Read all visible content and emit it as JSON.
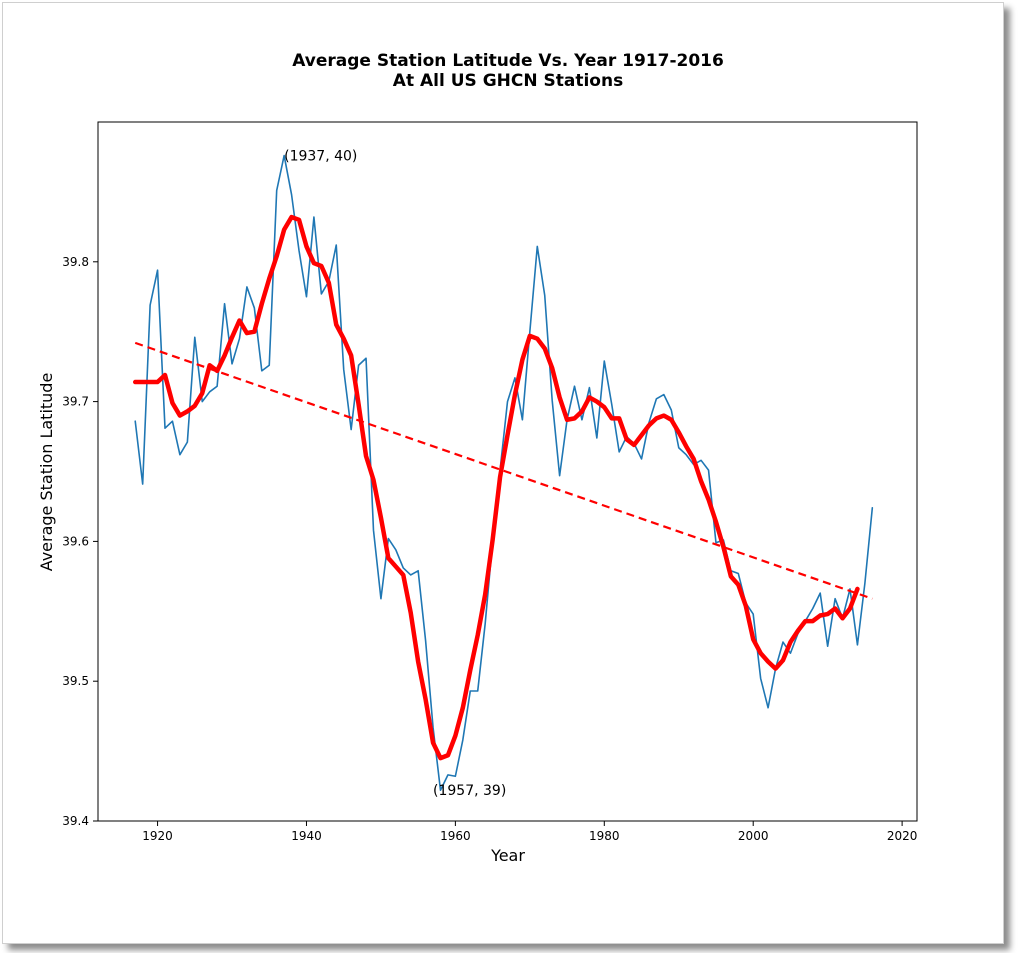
{
  "chart_data": {
    "type": "line",
    "title": "Average Station Latitude Vs. Year 1917-2016",
    "subtitle": "At All US GHCN Stations",
    "xlabel": "Year",
    "ylabel": "Average Station Latitude",
    "xlim": [
      1912,
      2022
    ],
    "ylim": [
      39.4,
      39.9
    ],
    "xticks": [
      1920,
      1940,
      1960,
      1980,
      2000,
      2020
    ],
    "yticks": [
      39.4,
      39.5,
      39.6,
      39.7,
      39.8
    ],
    "xtick_labels": [
      "1920",
      "1940",
      "1960",
      "1980",
      "2000",
      "2020"
    ],
    "ytick_labels": [
      "39.4",
      "39.5",
      "39.6",
      "39.7",
      "39.8"
    ],
    "grid": false,
    "colors": {
      "raw": "#1f77b4",
      "smooth": "#ff0000",
      "trend": "#ff0000"
    },
    "series": [
      {
        "style": "thin-blue",
        "x": [
          1917,
          1918,
          1919,
          1920,
          1921,
          1922,
          1923,
          1924,
          1925,
          1926,
          1927,
          1928,
          1929,
          1930,
          1931,
          1932,
          1933,
          1934,
          1935,
          1936,
          1937,
          1938,
          1939,
          1940,
          1941,
          1942,
          1943,
          1944,
          1945,
          1946,
          1947,
          1948,
          1949,
          1950,
          1951,
          1952,
          1953,
          1954,
          1955,
          1956,
          1957,
          1958,
          1959,
          1960,
          1961,
          1962,
          1963,
          1964,
          1965,
          1966,
          1967,
          1968,
          1969,
          1970,
          1971,
          1972,
          1973,
          1974,
          1975,
          1976,
          1977,
          1978,
          1979,
          1980,
          1981,
          1982,
          1983,
          1984,
          1985,
          1986,
          1987,
          1988,
          1989,
          1990,
          1991,
          1992,
          1993,
          1994,
          1995,
          1996,
          1997,
          1998,
          1999,
          2000,
          2001,
          2002,
          2003,
          2004,
          2005,
          2006,
          2007,
          2008,
          2009,
          2010,
          2011,
          2012,
          2013,
          2014,
          2015,
          2016
        ],
        "y": [
          39.686,
          39.641,
          39.769,
          39.794,
          39.681,
          39.686,
          39.662,
          39.671,
          39.746,
          39.7,
          39.707,
          39.711,
          39.77,
          39.727,
          39.745,
          39.782,
          39.767,
          39.722,
          39.726,
          39.851,
          39.876,
          39.848,
          39.808,
          39.775,
          39.832,
          39.777,
          39.786,
          39.812,
          39.723,
          39.68,
          39.726,
          39.731,
          39.608,
          39.559,
          39.602,
          39.594,
          39.581,
          39.576,
          39.579,
          39.529,
          39.467,
          39.422,
          39.433,
          39.432,
          39.458,
          39.493,
          39.493,
          39.541,
          39.6,
          39.651,
          39.7,
          39.717,
          39.687,
          39.75,
          39.811,
          39.776,
          39.701,
          39.647,
          39.687,
          39.711,
          39.687,
          39.71,
          39.674,
          39.729,
          39.698,
          39.664,
          39.675,
          39.67,
          39.659,
          39.685,
          39.702,
          39.705,
          39.694,
          39.667,
          39.662,
          39.655,
          39.658,
          39.651,
          39.599,
          39.601,
          39.579,
          39.577,
          39.556,
          39.548,
          39.502,
          39.481,
          39.509,
          39.528,
          39.52,
          39.534,
          39.543,
          39.552,
          39.563,
          39.525,
          39.559,
          39.545,
          39.566,
          39.526,
          39.57,
          39.624
        ]
      },
      {
        "style": "thick-red",
        "x": [
          1917,
          1918,
          1919,
          1920,
          1921,
          1922,
          1923,
          1924,
          1925,
          1926,
          1927,
          1928,
          1929,
          1930,
          1931,
          1932,
          1933,
          1934,
          1935,
          1936,
          1937,
          1938,
          1939,
          1940,
          1941,
          1942,
          1943,
          1944,
          1945,
          1946,
          1947,
          1948,
          1949,
          1950,
          1951,
          1952,
          1953,
          1954,
          1955,
          1956,
          1957,
          1958,
          1959,
          1960,
          1961,
          1962,
          1963,
          1964,
          1965,
          1966,
          1967,
          1968,
          1969,
          1970,
          1971,
          1972,
          1973,
          1974,
          1975,
          1976,
          1977,
          1978,
          1979,
          1980,
          1981,
          1982,
          1983,
          1984,
          1985,
          1986,
          1987,
          1988,
          1989,
          1990,
          1991,
          1992,
          1993,
          1994,
          1995,
          1996,
          1997,
          1998,
          1999,
          2000,
          2001,
          2002,
          2003,
          2004,
          2005,
          2006,
          2007,
          2008,
          2009,
          2010,
          2011,
          2012,
          2013,
          2014
        ],
        "y": [
          39.714,
          39.714,
          39.714,
          39.714,
          39.719,
          39.699,
          39.69,
          39.693,
          39.697,
          39.706,
          39.726,
          39.722,
          39.733,
          39.746,
          39.758,
          39.749,
          39.75,
          39.77,
          39.788,
          39.804,
          39.823,
          39.832,
          39.83,
          39.811,
          39.799,
          39.797,
          39.785,
          39.755,
          39.745,
          39.733,
          39.698,
          39.661,
          39.644,
          39.617,
          39.588,
          39.582,
          39.576,
          39.549,
          39.514,
          39.487,
          39.456,
          39.445,
          39.447,
          39.461,
          39.481,
          39.508,
          39.533,
          39.562,
          39.601,
          39.646,
          39.676,
          39.705,
          39.73,
          39.747,
          39.745,
          39.738,
          39.724,
          39.703,
          39.687,
          39.688,
          39.693,
          39.703,
          39.7,
          39.696,
          39.688,
          39.688,
          39.673,
          39.669,
          39.676,
          39.683,
          39.688,
          39.69,
          39.687,
          39.678,
          39.668,
          39.659,
          39.643,
          39.63,
          39.614,
          39.596,
          39.575,
          39.569,
          39.554,
          39.53,
          39.52,
          39.514,
          39.509,
          39.515,
          39.528,
          39.536,
          39.543,
          39.543,
          39.547,
          39.548,
          39.552,
          39.545,
          39.552,
          39.566
        ]
      },
      {
        "style": "dashed-red",
        "x": [
          1917,
          2016
        ],
        "y": [
          39.742,
          39.559
        ]
      }
    ],
    "annotations": [
      {
        "text": "(1937, 40)",
        "x": 1937,
        "y": 39.876
      },
      {
        "text": "(1957, 39)",
        "x": 1957,
        "y": 39.422
      }
    ]
  }
}
